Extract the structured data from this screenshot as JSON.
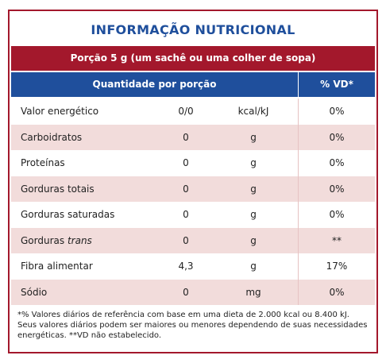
{
  "header": {
    "title": "INFORMAÇÃO NUTRICIONAL",
    "serving": "Porção 5 g (um sachê ou uma colher de sopa)"
  },
  "table": {
    "columns": [
      "Quantidade por porção",
      "% VD*"
    ],
    "rows": [
      {
        "name": "Valor energético",
        "value": "0/0",
        "unit": "kcal/kJ",
        "vd": "0%"
      },
      {
        "name": "Carboidratos",
        "value": "0",
        "unit": "g",
        "vd": "0%"
      },
      {
        "name": "Proteínas",
        "value": "0",
        "unit": "g",
        "vd": "0%"
      },
      {
        "name": "Gorduras totais",
        "value": "0",
        "unit": "g",
        "vd": "0%"
      },
      {
        "name": "Gorduras saturadas",
        "value": "0",
        "unit": "g",
        "vd": "0%"
      },
      {
        "name": "Gorduras",
        "name_italic": "trans",
        "value": "0",
        "unit": "g",
        "vd": "**"
      },
      {
        "name": "Fibra alimentar",
        "value": "4,3",
        "unit": "g",
        "vd": "17%"
      },
      {
        "name": "Sódio",
        "value": "0",
        "unit": "mg",
        "vd": "0%"
      }
    ]
  },
  "footnote": "*% Valores diários de referência com base em uma dieta de 2.000 kcal ou 8.400 kJ. Seus valores diários podem ser maiores ou menores dependendo de suas necessidades energéticas. **VD não estabelecido."
}
